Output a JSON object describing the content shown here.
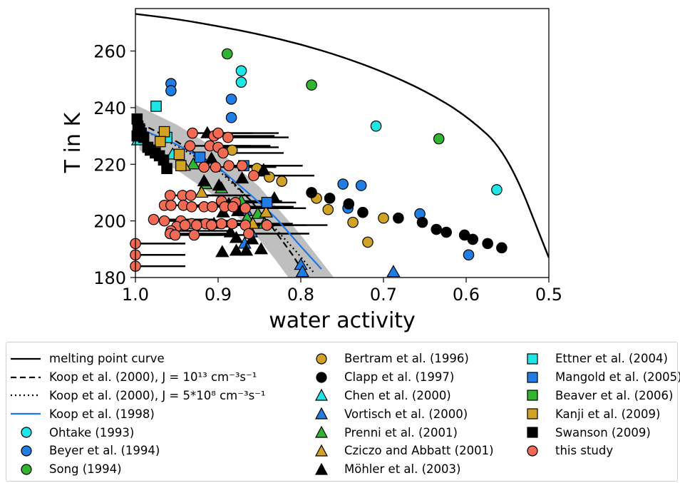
{
  "chart_data": {
    "type": "scatter",
    "xlabel": "water activity",
    "ylabel": "T in K",
    "xlim": [
      1.0,
      0.5
    ],
    "ylim": [
      180,
      275
    ],
    "x_reversed": true,
    "xticks": [
      "1.0",
      "0.9",
      "0.8",
      "0.7",
      "0.6",
      "0.5"
    ],
    "yticks": [
      "180",
      "200",
      "220",
      "240",
      "260"
    ],
    "legend_position": "below",
    "curves": [
      {
        "name": "melting point curve",
        "style": "solid",
        "color": "#000000",
        "x": [
          1.0,
          0.95,
          0.9,
          0.85,
          0.8,
          0.75,
          0.7,
          0.65,
          0.6,
          0.55,
          0.5
        ],
        "y": [
          273.1,
          271.2,
          268.8,
          265.8,
          262.0,
          257.5,
          252.0,
          245.3,
          217.0,
          205.0,
          187.0
        ]
      },
      {
        "name": "Koop et al. (2000), J = 10¹³ cm⁻³s⁻¹",
        "style": "dashed",
        "color": "#000000",
        "x": [
          0.995,
          0.95,
          0.9,
          0.86,
          0.83,
          0.81,
          0.795
        ],
        "y": [
          234.5,
          228.0,
          219.0,
          207.0,
          196.0,
          188.0,
          181.0
        ]
      },
      {
        "name": "Koop et al. (2000), J = 5*10⁸ cm⁻³s⁻¹",
        "style": "dotted",
        "color": "#000000",
        "x": [
          0.99,
          0.95,
          0.9,
          0.86,
          0.83,
          0.805,
          0.785
        ],
        "y": [
          232.0,
          226.5,
          218.0,
          207.0,
          197.0,
          189.0,
          182.0
        ]
      },
      {
        "name": "Koop et al. (1998)",
        "style": "solid",
        "color": "#1f77e4",
        "x": [
          0.99,
          0.95,
          0.9,
          0.86,
          0.83,
          0.8,
          0.775
        ],
        "y": [
          232.0,
          227.0,
          219.0,
          209.0,
          201.0,
          191.0,
          183.0
        ]
      }
    ],
    "band": {
      "upper": [
        [
          1.0,
          241.0
        ],
        [
          0.95,
          234.0
        ],
        [
          0.9,
          225.0
        ],
        [
          0.85,
          212.0
        ],
        [
          0.8,
          195.0
        ],
        [
          0.76,
          180.0
        ]
      ],
      "lower": [
        [
          0.995,
          225.0
        ],
        [
          0.95,
          218.0
        ],
        [
          0.9,
          208.0
        ],
        [
          0.86,
          197.0
        ],
        [
          0.83,
          186.0
        ],
        [
          0.815,
          180.0
        ]
      ]
    },
    "series": [
      {
        "name": "Ohtake (1993)",
        "marker": "circle",
        "color": "#1ee6e6",
        "points": [
          [
            0.872,
            253.0
          ],
          [
            0.872,
            249.0
          ],
          [
            0.709,
            233.5
          ],
          [
            0.563,
            211.0
          ]
        ]
      },
      {
        "name": "Beyer et al. (1994)",
        "marker": "circle",
        "color": "#1f7de4",
        "points": [
          [
            0.957,
            248.5
          ],
          [
            0.957,
            246.0
          ],
          [
            0.884,
            243.0
          ],
          [
            0.884,
            236.5
          ],
          [
            0.749,
            213.0
          ],
          [
            0.727,
            212.5
          ],
          [
            0.743,
            204.5
          ],
          [
            0.656,
            202.5
          ],
          [
            0.597,
            188.0
          ]
        ]
      },
      {
        "name": "Song (1994)",
        "marker": "circle",
        "color": "#2fb52f",
        "points": [
          [
            0.889,
            259.0
          ],
          [
            0.787,
            248.0
          ],
          [
            0.633,
            229.0
          ]
        ]
      },
      {
        "name": "Bertram et al. (1996)",
        "marker": "circle",
        "color": "#d1a223",
        "points": [
          [
            0.883,
            225.0
          ],
          [
            0.853,
            218.5
          ],
          [
            0.838,
            215.5
          ],
          [
            0.823,
            214.0
          ],
          [
            0.781,
            208.0
          ],
          [
            0.767,
            204.0
          ],
          [
            0.737,
            199.5
          ],
          [
            0.7,
            201.0
          ],
          [
            0.719,
            192.5
          ]
        ]
      },
      {
        "name": "Clapp et al. (1997)",
        "marker": "circle",
        "color": "#000000",
        "points": [
          [
            0.787,
            210.0
          ],
          [
            0.765,
            208.0
          ],
          [
            0.742,
            206.0
          ],
          [
            0.725,
            203.0
          ],
          [
            0.682,
            201.0
          ],
          [
            0.653,
            199.5
          ],
          [
            0.636,
            197.0
          ],
          [
            0.624,
            196.0
          ],
          [
            0.602,
            195.0
          ],
          [
            0.592,
            193.5
          ],
          [
            0.574,
            192.0
          ],
          [
            0.557,
            190.5
          ]
        ]
      },
      {
        "name": "Chen et al. (2000)",
        "marker": "triangle",
        "color": "#1ee6e6",
        "points": [
          [
            0.997,
            228.5
          ],
          [
            0.955,
            223.5
          ]
        ]
      },
      {
        "name": "Vortisch et al. (2000)",
        "marker": "triangle",
        "color": "#1f7de4",
        "points": [
          [
            0.8,
            184.5
          ],
          [
            0.798,
            182.0
          ],
          [
            0.688,
            182.0
          ],
          [
            0.866,
            203.5
          ],
          [
            0.86,
            196.0
          ],
          [
            0.868,
            192.0
          ]
        ]
      },
      {
        "name": "Prenni et al. (2001)",
        "marker": "triangle",
        "color": "#2fb52f",
        "points": [
          [
            0.93,
            220.0
          ],
          [
            0.915,
            213.0
          ],
          [
            0.896,
            211.5
          ],
          [
            0.872,
            207.0
          ],
          [
            0.865,
            201.0
          ],
          [
            0.852,
            202.5
          ],
          [
            0.844,
            199.0
          ]
        ]
      },
      {
        "name": "Cziczo and Abbatt (2001)",
        "marker": "triangle",
        "color": "#d1a223",
        "points": [
          [
            0.941,
            219.5
          ],
          [
            0.92,
            210.0
          ],
          [
            0.842,
            203.0
          ],
          [
            0.858,
            199.0
          ]
        ]
      },
      {
        "name": "Möhler et al. (2003)",
        "marker": "triangle",
        "color": "#000000",
        "points": [
          [
            0.913,
            231.0
          ],
          [
            0.908,
            222.0
          ],
          [
            0.917,
            214.0
          ],
          [
            0.899,
            212.5
          ],
          [
            0.887,
            206.0
          ],
          [
            0.876,
            203.5
          ],
          [
            0.894,
            203.0
          ],
          [
            0.905,
            199.0
          ],
          [
            0.885,
            196.0
          ],
          [
            0.878,
            194.0
          ],
          [
            0.859,
            193.5
          ],
          [
            0.866,
            189.5
          ],
          [
            0.895,
            189.0
          ],
          [
            0.878,
            189.5
          ],
          [
            0.848,
            190.0
          ],
          [
            0.832,
            208.0
          ],
          [
            0.845,
            218.0
          ],
          [
            0.871,
            215.0
          ]
        ]
      },
      {
        "name": "Ettner et al. (2004)",
        "marker": "square",
        "color": "#1ee6e6",
        "points": [
          [
            0.975,
            240.5
          ],
          [
            0.962,
            229.5
          ]
        ]
      },
      {
        "name": "Mangold et al. (2005)",
        "marker": "square",
        "color": "#1f7de4",
        "points": [
          [
            0.922,
            222.5
          ],
          [
            0.869,
            219.5
          ],
          [
            0.841,
            206.5
          ]
        ]
      },
      {
        "name": "Beaver et al. (2006)",
        "marker": "square",
        "color": "#2fb52f",
        "points": []
      },
      {
        "name": "Kanji et al. (2009)",
        "marker": "square",
        "color": "#d1a223",
        "points": [
          [
            0.965,
            231.5
          ],
          [
            0.97,
            228.0
          ],
          [
            0.947,
            223.5
          ],
          [
            0.945,
            219.5
          ]
        ]
      },
      {
        "name": "Swanson (2009)",
        "marker": "square",
        "color": "#000000",
        "points": [
          [
            0.998,
            236.0
          ],
          [
            0.997,
            233.5
          ],
          [
            0.995,
            232.5
          ],
          [
            0.99,
            229.5
          ],
          [
            0.985,
            226.0
          ],
          [
            0.982,
            225.0
          ],
          [
            0.976,
            224.0
          ],
          [
            0.971,
            223.0
          ],
          [
            0.966,
            221.5
          ],
          [
            0.962,
            218.5
          ],
          [
            0.998,
            230.0
          ],
          [
            0.993,
            231.0
          ]
        ]
      },
      {
        "name": "this study",
        "marker": "circle",
        "color": "#f26a54",
        "errorbars": true,
        "points": [
          [
            0.931,
            231.0
          ],
          [
            0.905,
            230.0
          ],
          [
            0.9,
            231.0
          ],
          [
            0.888,
            229.5
          ],
          [
            0.934,
            226.5
          ],
          [
            0.91,
            226.5
          ],
          [
            0.9,
            226.0
          ],
          [
            0.894,
            224.0
          ],
          [
            0.917,
            219.0
          ],
          [
            0.903,
            219.0
          ],
          [
            0.887,
            219.5
          ],
          [
            0.871,
            219.5
          ],
          [
            0.857,
            216.0
          ],
          [
            0.958,
            209.0
          ],
          [
            0.943,
            209.0
          ],
          [
            0.933,
            209.0
          ],
          [
            0.896,
            207.0
          ],
          [
            0.879,
            206.5
          ],
          [
            0.965,
            205.5
          ],
          [
            0.957,
            205.5
          ],
          [
            0.942,
            205.5
          ],
          [
            0.932,
            205.0
          ],
          [
            0.917,
            205.0
          ],
          [
            0.907,
            205.0
          ],
          [
            0.892,
            205.0
          ],
          [
            0.882,
            205.0
          ],
          [
            0.867,
            204.5
          ],
          [
            0.978,
            200.5
          ],
          [
            0.965,
            200.0
          ],
          [
            0.945,
            200.0
          ],
          [
            0.932,
            199.0
          ],
          [
            0.915,
            199.0
          ],
          [
            0.896,
            199.0
          ],
          [
            0.883,
            199.0
          ],
          [
            0.867,
            198.5
          ],
          [
            0.841,
            198.5
          ],
          [
            0.95,
            198.0
          ],
          [
            0.94,
            198.5
          ],
          [
            0.926,
            198.5
          ],
          [
            0.908,
            198.5
          ],
          [
            0.957,
            196.5
          ],
          [
            0.958,
            195.5
          ],
          [
            0.952,
            195.0
          ],
          [
            0.929,
            195.0
          ],
          [
            0.863,
            195.5
          ],
          [
            1.0,
            192.0
          ],
          [
            1.0,
            188.0
          ],
          [
            1.0,
            184.0
          ]
        ]
      }
    ]
  }
}
